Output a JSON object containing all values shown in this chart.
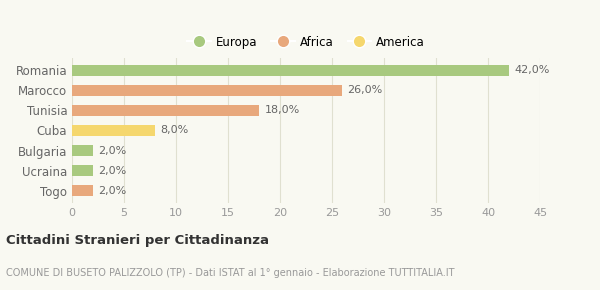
{
  "categories": [
    "Romania",
    "Marocco",
    "Tunisia",
    "Cuba",
    "Bulgaria",
    "Ucraina",
    "Togo"
  ],
  "values": [
    42.0,
    26.0,
    18.0,
    8.0,
    2.0,
    2.0,
    2.0
  ],
  "bar_colors": [
    "#a8c97f",
    "#e8a87c",
    "#e8a87c",
    "#f5d76e",
    "#a8c97f",
    "#a8c97f",
    "#e8a87c"
  ],
  "bar_labels": [
    "42,0%",
    "26,0%",
    "18,0%",
    "8,0%",
    "2,0%",
    "2,0%",
    "2,0%"
  ],
  "legend_labels": [
    "Europa",
    "Africa",
    "America"
  ],
  "legend_colors": [
    "#a8c97f",
    "#e8a87c",
    "#f5d76e"
  ],
  "xlim": [
    0,
    45
  ],
  "xticks": [
    0,
    5,
    10,
    15,
    20,
    25,
    30,
    35,
    40,
    45
  ],
  "title_main": "Cittadini Stranieri per Cittadinanza",
  "title_sub": "COMUNE DI BUSETO PALIZZOLO (TP) - Dati ISTAT al 1° gennaio - Elaborazione TUTTITALIA.IT",
  "background_color": "#f9f9f2",
  "grid_color": "#e0e0d0"
}
